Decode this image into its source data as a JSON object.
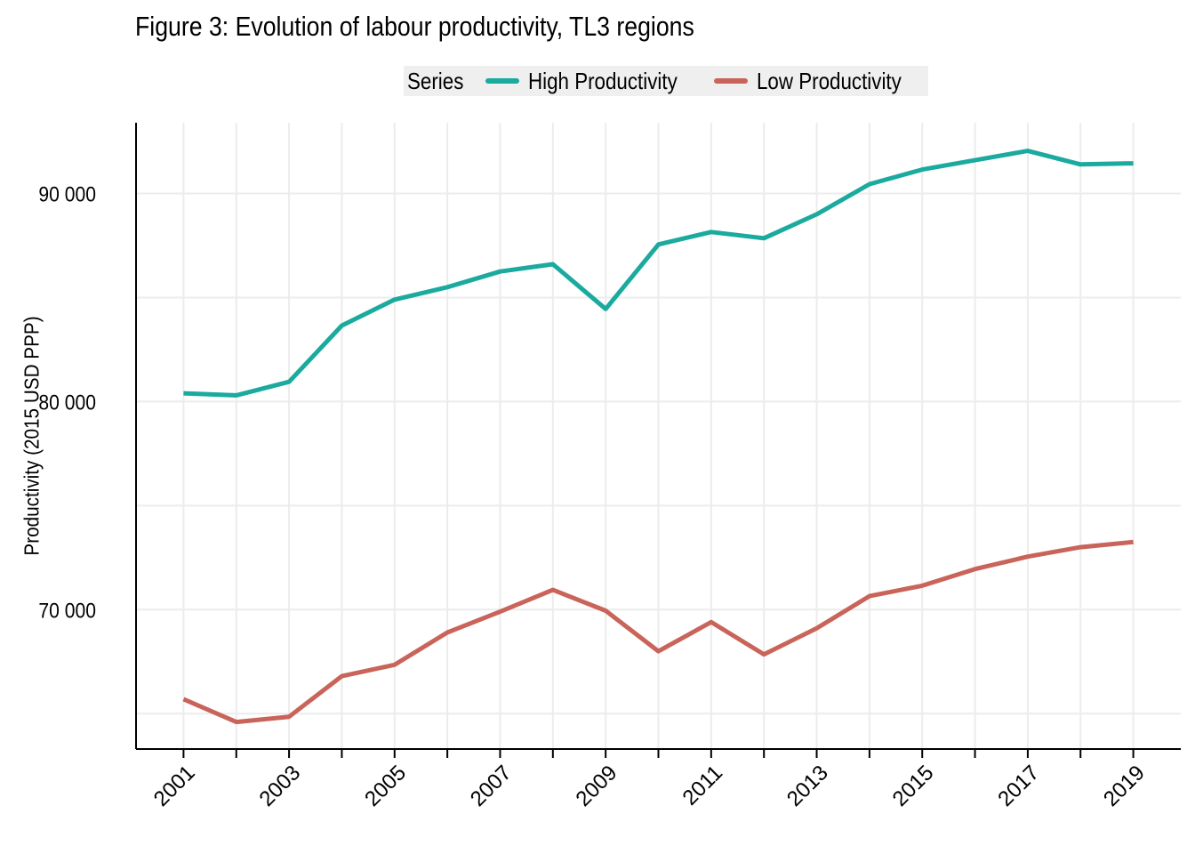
{
  "chart_data": {
    "type": "line",
    "title": "Figure 3: Evolution of labour productivity, TL3 regions",
    "ylabel": "Productivity (2015 USD PPP)",
    "xlabel": "",
    "x": [
      2001,
      2002,
      2003,
      2004,
      2005,
      2006,
      2007,
      2008,
      2009,
      2010,
      2011,
      2012,
      2013,
      2014,
      2015,
      2016,
      2017,
      2018,
      2019
    ],
    "x_tick_labels": [
      "2001",
      "2003",
      "2005",
      "2007",
      "2009",
      "2011",
      "2013",
      "2015",
      "2017",
      "2019"
    ],
    "y_ticks": [
      70000,
      80000,
      90000
    ],
    "y_tick_labels": [
      "70 000",
      "80 000",
      "90 000"
    ],
    "ylim": [
      63300,
      93400
    ],
    "xlim": [
      2000.1,
      2019.9
    ],
    "grid": true,
    "legend": {
      "title": "Series",
      "placement": "top"
    },
    "series": [
      {
        "name": "High Productivity",
        "color": "#1aaa9e",
        "values": [
          80400,
          80300,
          80950,
          83650,
          84900,
          85500,
          86250,
          86600,
          84450,
          87550,
          88150,
          87850,
          89000,
          90450,
          91150,
          91600,
          92050,
          91400,
          91450
        ]
      },
      {
        "name": "Low Productivity",
        "color": "#c9645a",
        "values": [
          65700,
          64600,
          64850,
          66800,
          67350,
          68900,
          69900,
          70950,
          69950,
          68000,
          69400,
          67850,
          69100,
          70650,
          71150,
          71950,
          72550,
          73000,
          73250
        ]
      }
    ]
  }
}
